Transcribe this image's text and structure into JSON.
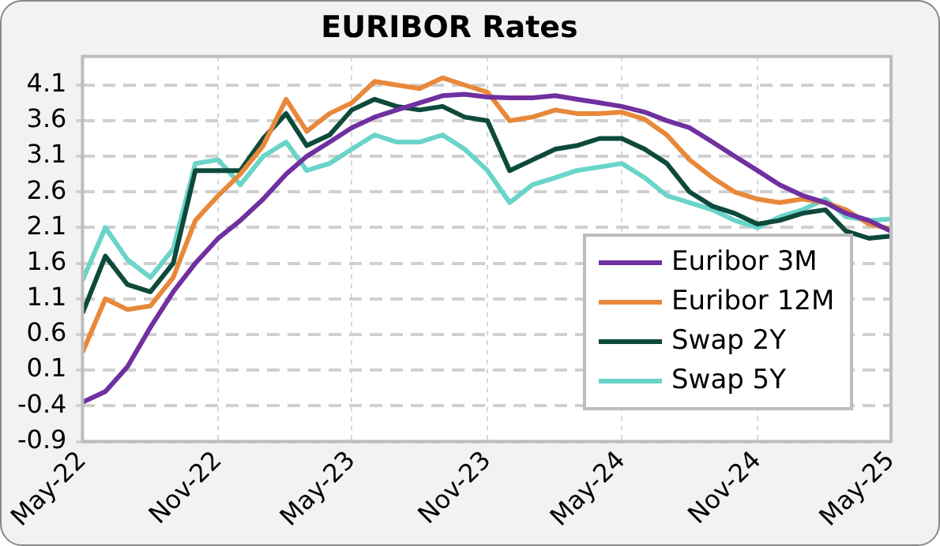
{
  "chart_data": {
    "type": "line",
    "title": "EURIBOR Rates",
    "x": [
      "2022-05-01",
      "2022-06-01",
      "2022-07-01",
      "2022-08-01",
      "2022-09-01",
      "2022-10-01",
      "2022-11-01",
      "2022-12-01",
      "2023-01-01",
      "2023-02-01",
      "2023-03-01",
      "2023-04-01",
      "2023-05-01",
      "2023-06-01",
      "2023-07-01",
      "2023-08-01",
      "2023-09-01",
      "2023-10-01",
      "2023-11-01",
      "2023-12-01",
      "2024-01-01",
      "2024-02-01",
      "2024-03-01",
      "2024-04-01",
      "2024-05-01",
      "2024-06-01",
      "2024-07-01",
      "2024-08-01",
      "2024-09-01",
      "2024-10-01",
      "2024-11-01",
      "2024-12-01",
      "2025-01-01",
      "2025-02-01",
      "2025-03-01",
      "2025-04-01",
      "2025-05-01"
    ],
    "series": [
      {
        "name": "Euribor 3M",
        "color": "#7030a0",
        "values": [
          -0.35,
          -0.2,
          0.15,
          0.7,
          1.2,
          1.6,
          1.95,
          2.2,
          2.5,
          2.85,
          3.1,
          3.3,
          3.5,
          3.65,
          3.75,
          3.85,
          3.95,
          3.97,
          3.93,
          3.92,
          3.92,
          3.95,
          3.9,
          3.85,
          3.8,
          3.72,
          3.6,
          3.5,
          3.3,
          3.1,
          2.9,
          2.7,
          2.55,
          2.45,
          2.3,
          2.2,
          2.05
        ]
      },
      {
        "name": "Euribor 12M",
        "color": "#e8883a",
        "values": [
          0.35,
          1.1,
          0.95,
          1.0,
          1.4,
          2.2,
          2.55,
          2.85,
          3.25,
          3.9,
          3.45,
          3.7,
          3.85,
          4.15,
          4.1,
          4.05,
          4.2,
          4.1,
          4.0,
          3.6,
          3.65,
          3.75,
          3.7,
          3.7,
          3.72,
          3.62,
          3.4,
          3.05,
          2.8,
          2.6,
          2.5,
          2.45,
          2.5,
          2.45,
          2.35,
          2.15,
          2.08
        ]
      },
      {
        "name": "Swap 2Y",
        "color": "#0e4a3c",
        "values": [
          0.9,
          1.7,
          1.3,
          1.2,
          1.6,
          2.9,
          2.9,
          2.9,
          3.35,
          3.7,
          3.25,
          3.4,
          3.75,
          3.9,
          3.8,
          3.75,
          3.8,
          3.65,
          3.6,
          2.9,
          3.05,
          3.2,
          3.25,
          3.35,
          3.35,
          3.2,
          3.0,
          2.6,
          2.4,
          2.3,
          2.15,
          2.2,
          2.3,
          2.35,
          2.05,
          1.95,
          1.98
        ]
      },
      {
        "name": "Swap 5Y",
        "color": "#6ad4c8",
        "values": [
          1.36,
          2.1,
          1.65,
          1.4,
          1.8,
          3.0,
          3.05,
          2.7,
          3.1,
          3.3,
          2.9,
          3.0,
          3.2,
          3.4,
          3.3,
          3.3,
          3.4,
          3.2,
          2.9,
          2.45,
          2.7,
          2.8,
          2.9,
          2.95,
          3.0,
          2.8,
          2.55,
          2.45,
          2.35,
          2.2,
          2.1,
          2.25,
          2.35,
          2.5,
          2.25,
          2.2,
          2.22
        ]
      }
    ],
    "xlim": [
      "2022-05-01",
      "2025-05-01"
    ],
    "xticks": [
      {
        "value": "2022-05-01",
        "label": "May-22"
      },
      {
        "value": "2022-11-01",
        "label": "Nov-22"
      },
      {
        "value": "2023-05-01",
        "label": "May-23"
      },
      {
        "value": "2023-11-01",
        "label": "Nov-23"
      },
      {
        "value": "2024-05-01",
        "label": "May-24"
      },
      {
        "value": "2024-11-01",
        "label": "Nov-24"
      },
      {
        "value": "2025-05-01",
        "label": "May-25"
      }
    ],
    "ylim": [
      -0.9,
      4.5
    ],
    "yticks": [
      -0.9,
      -0.4,
      0.1,
      0.6,
      1.1,
      1.6,
      2.1,
      2.6,
      3.1,
      3.6,
      4.1
    ],
    "grid": true,
    "legend": "bottom right",
    "marker": "none",
    "line_style": "solid"
  }
}
